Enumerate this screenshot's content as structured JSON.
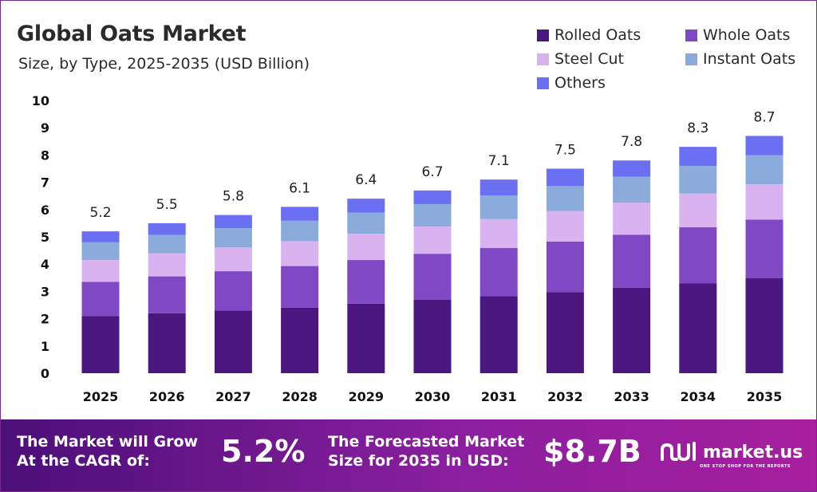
{
  "header": {
    "title": "Global Oats Market",
    "subtitle": "Size, by Type, 2025-2035 (USD Billion)"
  },
  "chart_data": {
    "type": "bar",
    "stacked": true,
    "categories": [
      "2025",
      "2026",
      "2027",
      "2028",
      "2029",
      "2030",
      "2031",
      "2032",
      "2033",
      "2034",
      "2035"
    ],
    "series": [
      {
        "name": "Rolled Oats",
        "color": "#4a1680",
        "values": [
          2.1,
          2.2,
          2.3,
          2.4,
          2.55,
          2.7,
          2.82,
          2.97,
          3.13,
          3.3,
          3.48
        ]
      },
      {
        "name": "Whole Oats",
        "color": "#8048c4",
        "values": [
          1.25,
          1.35,
          1.44,
          1.53,
          1.6,
          1.68,
          1.77,
          1.86,
          1.95,
          2.05,
          2.15
        ]
      },
      {
        "name": "Steel Cut",
        "color": "#d9b3f0",
        "values": [
          0.8,
          0.84,
          0.87,
          0.91,
          0.96,
          1.0,
          1.06,
          1.12,
          1.17,
          1.24,
          1.3
        ]
      },
      {
        "name": "Instant Oats",
        "color": "#8aabdc",
        "values": [
          0.65,
          0.68,
          0.71,
          0.75,
          0.78,
          0.82,
          0.87,
          0.91,
          0.95,
          1.01,
          1.06
        ]
      },
      {
        "name": "Others",
        "color": "#6b70f2",
        "values": [
          0.4,
          0.43,
          0.48,
          0.51,
          0.51,
          0.5,
          0.58,
          0.64,
          0.6,
          0.7,
          0.71
        ]
      }
    ],
    "totals": [
      "5.2",
      "5.5",
      "5.8",
      "6.1",
      "6.4",
      "6.7",
      "7.1",
      "7.5",
      "7.8",
      "8.3",
      "8.7"
    ],
    "y_ticks": [
      "0",
      "1",
      "2",
      "3",
      "4",
      "5",
      "6",
      "7",
      "8",
      "9",
      "10"
    ],
    "ylim": [
      0,
      10
    ],
    "grid": false,
    "legend_position": "top-right"
  },
  "footer": {
    "cagr_label_line1": "The Market will Grow",
    "cagr_label_line2": "At the CAGR of:",
    "cagr_value": "5.2%",
    "forecast_label_line1": "The Forecasted Market",
    "forecast_label_line2": "Size for 2035 in USD:",
    "forecast_value": "$8.7B",
    "brand_name": "market.us",
    "brand_tagline": "ONE STOP SHOP FOR THE REPORTS",
    "brand_icon": "market-us-logo-icon"
  }
}
